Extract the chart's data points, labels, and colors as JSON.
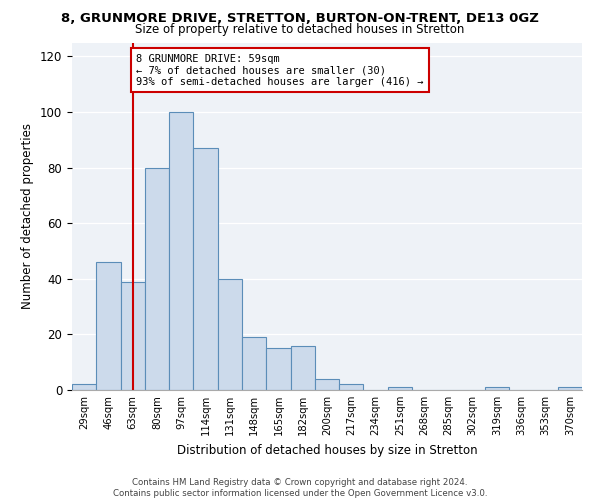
{
  "title": "8, GRUNMORE DRIVE, STRETTON, BURTON-ON-TRENT, DE13 0GZ",
  "subtitle": "Size of property relative to detached houses in Stretton",
  "xlabel": "Distribution of detached houses by size in Stretton",
  "ylabel": "Number of detached properties",
  "bin_labels": [
    "29sqm",
    "46sqm",
    "63sqm",
    "80sqm",
    "97sqm",
    "114sqm",
    "131sqm",
    "148sqm",
    "165sqm",
    "182sqm",
    "200sqm",
    "217sqm",
    "234sqm",
    "251sqm",
    "268sqm",
    "285sqm",
    "302sqm",
    "319sqm",
    "336sqm",
    "353sqm",
    "370sqm"
  ],
  "bar_heights": [
    2,
    46,
    39,
    80,
    100,
    87,
    40,
    19,
    15,
    16,
    4,
    2,
    0,
    1,
    0,
    0,
    0,
    1,
    0,
    0,
    1
  ],
  "bar_color": "#ccdaeb",
  "bar_edge_color": "#5b8db8",
  "vline_x": 2,
  "vline_color": "#cc0000",
  "annotation_text": "8 GRUNMORE DRIVE: 59sqm\n← 7% of detached houses are smaller (30)\n93% of semi-detached houses are larger (416) →",
  "annotation_box_color": "#ffffff",
  "annotation_box_edge": "#cc0000",
  "ylim": [
    0,
    125
  ],
  "yticks": [
    0,
    20,
    40,
    60,
    80,
    100,
    120
  ],
  "footer_line1": "Contains HM Land Registry data © Crown copyright and database right 2024.",
  "footer_line2": "Contains public sector information licensed under the Open Government Licence v3.0.",
  "background_color": "#eef2f7"
}
